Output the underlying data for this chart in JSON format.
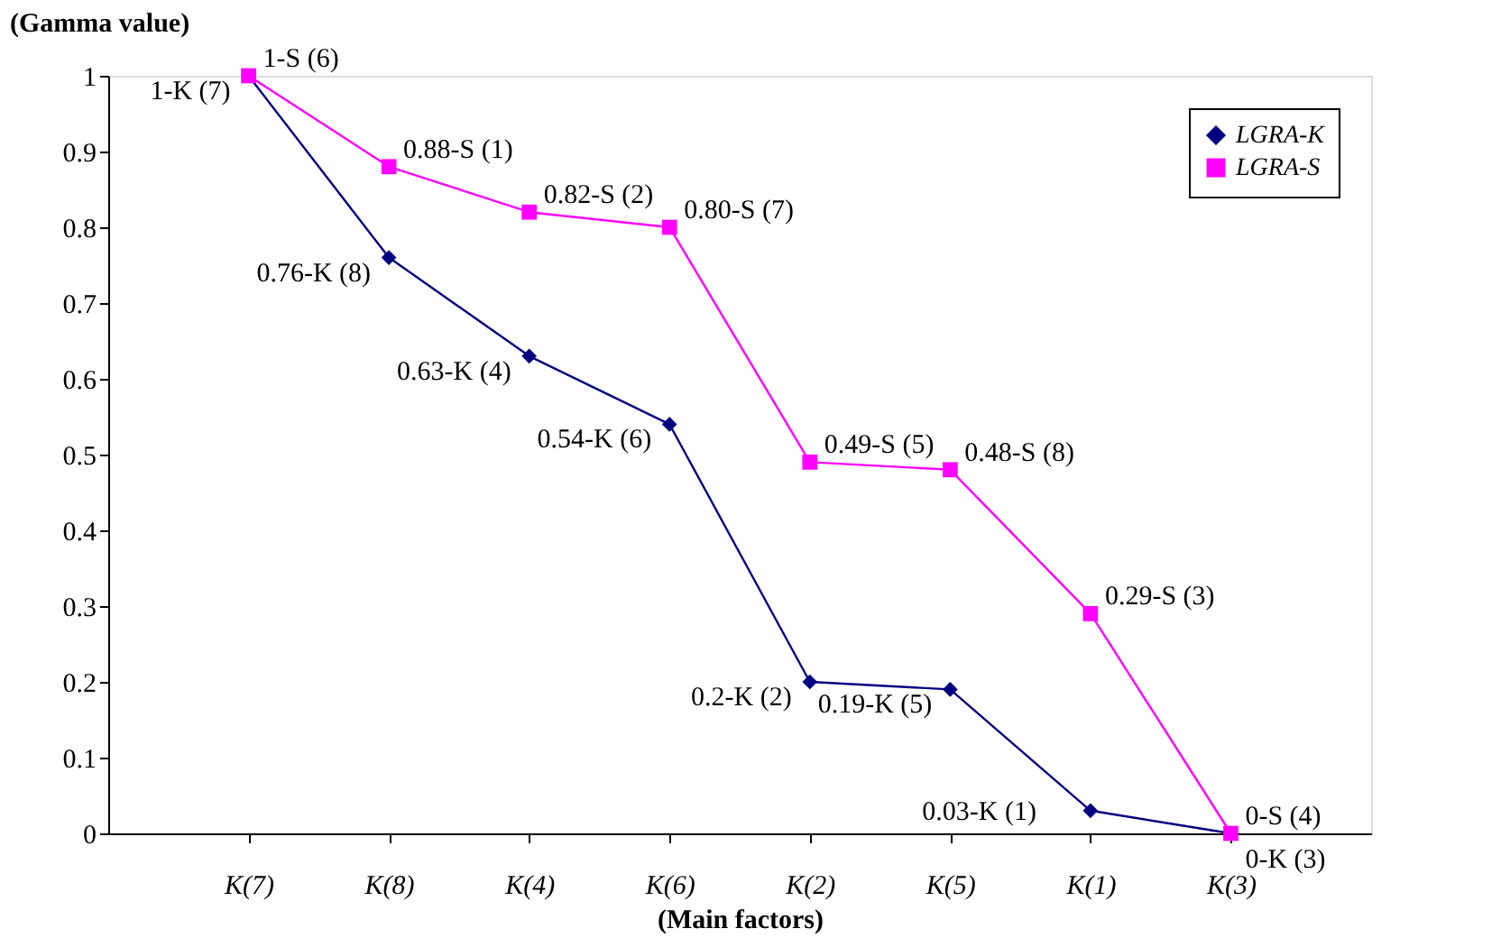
{
  "chart_data": {
    "type": "line",
    "xlabel": "(Main factors)",
    "ylabel": "(Gamma value)",
    "categories": [
      "K(7)",
      "K(8)",
      "K(4)",
      "K(6)",
      "K(2)",
      "K(5)",
      "K(1)",
      "K(3)"
    ],
    "ylim": [
      0,
      1
    ],
    "yticks": [
      0,
      0.1,
      0.2,
      0.3,
      0.4,
      0.5,
      0.6,
      0.7,
      0.8,
      0.9,
      1
    ],
    "grid": false,
    "legend": "top right",
    "series": [
      {
        "name": "LGRA-K",
        "color": "#000080",
        "marker": "diamond",
        "values": [
          1,
          0.76,
          0.63,
          0.54,
          0.2,
          0.19,
          0.03,
          0
        ],
        "value_labels": [
          "1-K (7)",
          "0.76-K (8)",
          "0.63-K (4)",
          "0.54-K (6)",
          "0.2-K (2)",
          "0.19-K (5)",
          "0.03-K (1)",
          "0-K (3)"
        ]
      },
      {
        "name": "LGRA-S",
        "color": "#ff00ff",
        "marker": "square",
        "values": [
          1,
          0.88,
          0.82,
          0.8,
          0.49,
          0.48,
          0.29,
          0
        ],
        "value_labels": [
          "1-S (6)",
          "0.88-S (1)",
          "0.82-S (2)",
          "0.80-S (7)",
          "0.49-S (5)",
          "0.48-S (8)",
          "0.29-S (3)",
          "0-S (4)"
        ]
      }
    ]
  }
}
